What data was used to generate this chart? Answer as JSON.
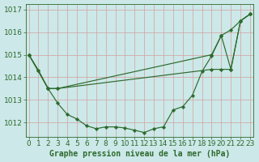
{
  "bg_color": "#cce8e8",
  "grid_color": "#d4a0a0",
  "line_color": "#2d6a2d",
  "title": "Graphe pression niveau de la mer (hPa)",
  "title_fontsize": 7.0,
  "tick_fontsize": 6.5,
  "xlim": [
    -0.3,
    23.3
  ],
  "ylim": [
    1011.35,
    1017.25
  ],
  "yticks": [
    1012,
    1013,
    1014,
    1015,
    1016,
    1017
  ],
  "xticks": [
    0,
    1,
    2,
    3,
    4,
    5,
    6,
    7,
    8,
    9,
    10,
    11,
    12,
    13,
    14,
    15,
    16,
    17,
    18,
    19,
    20,
    21,
    22,
    23
  ],
  "curve_main_x": [
    0,
    1,
    2,
    3,
    4,
    5,
    6,
    7,
    8,
    9,
    10,
    11,
    12,
    13,
    14,
    15,
    16,
    17,
    18,
    19,
    20,
    21,
    22,
    23
  ],
  "curve_main_y": [
    1015.0,
    1014.3,
    1013.5,
    1012.85,
    1012.35,
    1012.15,
    1011.85,
    1011.72,
    1011.8,
    1011.8,
    1011.75,
    1011.65,
    1011.55,
    1011.72,
    1011.8,
    1012.55,
    1012.7,
    1013.2,
    1014.25,
    1014.95,
    1015.85,
    1016.1,
    1016.5,
    1016.8
  ],
  "curve_b_x": [
    0,
    1,
    2,
    3,
    19,
    20,
    21,
    22,
    23
  ],
  "curve_b_y": [
    1015.0,
    1014.3,
    1013.5,
    1013.5,
    1014.35,
    1014.35,
    1014.35,
    1016.5,
    1016.8
  ],
  "curve_c_x": [
    0,
    2,
    3,
    19,
    20,
    21,
    22,
    23
  ],
  "curve_c_y": [
    1015.0,
    1013.5,
    1013.5,
    1015.0,
    1015.85,
    1014.35,
    1016.5,
    1016.8
  ],
  "lw": 0.85,
  "ms": 2.3
}
